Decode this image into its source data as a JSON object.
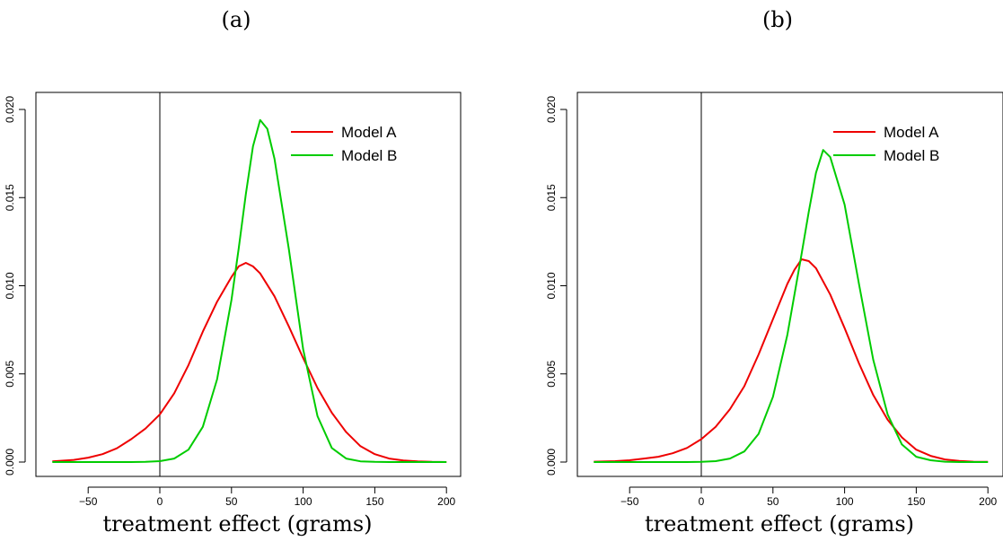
{
  "chart_data": [
    {
      "type": "line",
      "panel_label": "(a)",
      "xlabel": "treatment effect (grams)",
      "ylabel": "",
      "xlim": [
        -75,
        200
      ],
      "ylim": [
        0,
        0.02
      ],
      "x_ticks": [
        -50,
        0,
        50,
        100,
        150,
        200
      ],
      "x_tick_labels": [
        "−50",
        "0",
        "50",
        "100",
        "150",
        "200"
      ],
      "y_ticks": [
        0.0,
        0.005,
        0.01,
        0.015,
        0.02
      ],
      "y_tick_labels": [
        "0.000",
        "0.005",
        "0.010",
        "0.015",
        "0.020"
      ],
      "vline_x": 0,
      "grid": false,
      "legend_position": "top-right",
      "series": [
        {
          "name": "Model A",
          "color": "#ee0000",
          "x": [
            -75,
            -60,
            -50,
            -40,
            -30,
            -20,
            -10,
            0,
            10,
            20,
            30,
            40,
            50,
            55,
            60,
            65,
            70,
            80,
            90,
            100,
            110,
            120,
            130,
            140,
            150,
            160,
            170,
            180,
            190,
            200
          ],
          "y": [
            4e-05,
            0.00012,
            0.00025,
            0.00045,
            0.00078,
            0.0013,
            0.0019,
            0.0027,
            0.0039,
            0.0055,
            0.0074,
            0.0091,
            0.0105,
            0.0111,
            0.0113,
            0.0111,
            0.0107,
            0.0094,
            0.0077,
            0.0059,
            0.0042,
            0.0028,
            0.0017,
            0.0009,
            0.00045,
            0.0002,
            9e-05,
            4e-05,
            1e-05,
            0.0
          ]
        },
        {
          "name": "Model B",
          "color": "#00cc00",
          "x": [
            -75,
            -20,
            -10,
            0,
            10,
            20,
            30,
            40,
            50,
            55,
            60,
            65,
            70,
            75,
            80,
            90,
            100,
            110,
            120,
            130,
            140,
            150,
            160,
            170,
            200
          ],
          "y": [
            0.0,
            0.0,
            1e-05,
            5e-05,
            0.0002,
            0.0007,
            0.002,
            0.0047,
            0.0092,
            0.0121,
            0.0152,
            0.0179,
            0.0194,
            0.0189,
            0.0172,
            0.0121,
            0.0064,
            0.0026,
            0.0008,
            0.0002,
            4e-05,
            1e-05,
            0.0,
            0.0,
            0.0
          ]
        }
      ]
    },
    {
      "type": "line",
      "panel_label": "(b)",
      "xlabel": "treatment effect (grams)",
      "ylabel": "",
      "xlim": [
        -75,
        200
      ],
      "ylim": [
        0,
        0.02
      ],
      "x_ticks": [
        -50,
        0,
        50,
        100,
        150,
        200
      ],
      "x_tick_labels": [
        "−50",
        "0",
        "50",
        "100",
        "150",
        "200"
      ],
      "y_ticks": [
        0.0,
        0.005,
        0.01,
        0.015,
        0.02
      ],
      "y_tick_labels": [
        "0.000",
        "0.005",
        "0.010",
        "0.015",
        "0.020"
      ],
      "vline_x": 0,
      "grid": false,
      "legend_position": "top-right",
      "series": [
        {
          "name": "Model A",
          "color": "#ee0000",
          "x": [
            -75,
            -60,
            -50,
            -40,
            -30,
            -20,
            -10,
            0,
            10,
            20,
            30,
            40,
            50,
            60,
            65,
            70,
            75,
            80,
            90,
            100,
            110,
            120,
            130,
            140,
            150,
            160,
            170,
            180,
            190,
            200
          ],
          "y": [
            2e-05,
            5e-05,
            0.0001,
            0.0002,
            0.0003,
            0.0005,
            0.0008,
            0.0013,
            0.002,
            0.003,
            0.0043,
            0.0061,
            0.0081,
            0.0101,
            0.0109,
            0.0115,
            0.0114,
            0.011,
            0.0095,
            0.0076,
            0.0056,
            0.0038,
            0.0024,
            0.0014,
            0.0007,
            0.00035,
            0.00015,
            6e-05,
            2e-05,
            1e-05
          ]
        },
        {
          "name": "Model B",
          "color": "#00cc00",
          "x": [
            -75,
            -10,
            0,
            10,
            20,
            30,
            40,
            50,
            60,
            70,
            75,
            80,
            85,
            90,
            100,
            110,
            120,
            130,
            140,
            150,
            160,
            170,
            180,
            200
          ],
          "y": [
            0.0,
            0.0,
            1e-05,
            5e-05,
            0.0002,
            0.0006,
            0.0016,
            0.0037,
            0.0072,
            0.0118,
            0.0142,
            0.0164,
            0.0177,
            0.0173,
            0.0146,
            0.0101,
            0.0058,
            0.0027,
            0.001,
            0.0003,
            0.0001,
            2e-05,
            0.0,
            0.0
          ]
        }
      ]
    }
  ]
}
